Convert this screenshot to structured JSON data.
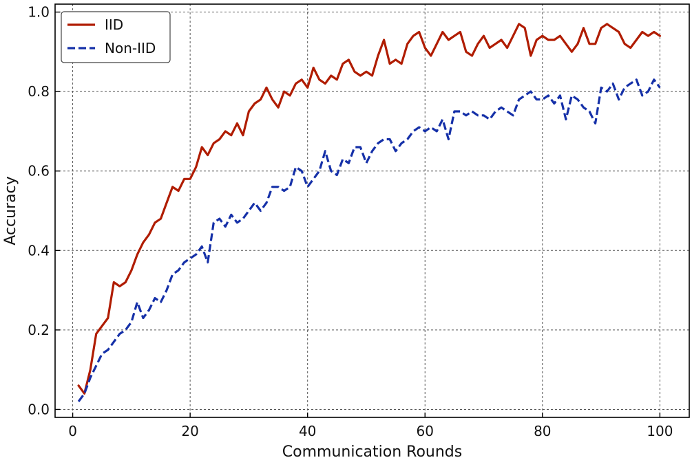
{
  "chart_data": {
    "type": "line",
    "xlabel": "Communication Rounds",
    "ylabel": "Accuracy",
    "xlim": [
      -3,
      105
    ],
    "ylim": [
      -0.02,
      1.02
    ],
    "xticks": [
      0,
      20,
      40,
      60,
      80,
      100
    ],
    "yticks": [
      0.0,
      0.2,
      0.4,
      0.6,
      0.8,
      1.0
    ],
    "xtick_labels": [
      "0",
      "20",
      "40",
      "60",
      "80",
      "100"
    ],
    "ytick_labels": [
      "0.0",
      "0.2",
      "0.4",
      "0.6",
      "0.8",
      "1.0"
    ],
    "grid": true,
    "legend_position": "top-left",
    "x": [
      1,
      2,
      3,
      4,
      5,
      6,
      7,
      8,
      9,
      10,
      11,
      12,
      13,
      14,
      15,
      16,
      17,
      18,
      19,
      20,
      21,
      22,
      23,
      24,
      25,
      26,
      27,
      28,
      29,
      30,
      31,
      32,
      33,
      34,
      35,
      36,
      37,
      38,
      39,
      40,
      41,
      42,
      43,
      44,
      45,
      46,
      47,
      48,
      49,
      50,
      51,
      52,
      53,
      54,
      55,
      56,
      57,
      58,
      59,
      60,
      61,
      62,
      63,
      64,
      65,
      66,
      67,
      68,
      69,
      70,
      71,
      72,
      73,
      74,
      75,
      76,
      77,
      78,
      79,
      80,
      81,
      82,
      83,
      84,
      85,
      86,
      87,
      88,
      89,
      90,
      91,
      92,
      93,
      94,
      95,
      96,
      97,
      98,
      99,
      100
    ],
    "series": [
      {
        "name": "IID",
        "color": "#b01c00",
        "style": "solid",
        "values": [
          0.06,
          0.04,
          0.1,
          0.19,
          0.21,
          0.23,
          0.32,
          0.31,
          0.32,
          0.35,
          0.39,
          0.42,
          0.44,
          0.47,
          0.48,
          0.52,
          0.56,
          0.55,
          0.58,
          0.58,
          0.61,
          0.66,
          0.64,
          0.67,
          0.68,
          0.7,
          0.69,
          0.72,
          0.69,
          0.75,
          0.77,
          0.78,
          0.81,
          0.78,
          0.76,
          0.8,
          0.79,
          0.82,
          0.83,
          0.81,
          0.86,
          0.83,
          0.82,
          0.84,
          0.83,
          0.87,
          0.88,
          0.85,
          0.84,
          0.85,
          0.84,
          0.89,
          0.93,
          0.87,
          0.88,
          0.87,
          0.92,
          0.94,
          0.95,
          0.91,
          0.89,
          0.92,
          0.95,
          0.93,
          0.94,
          0.95,
          0.9,
          0.89,
          0.92,
          0.94,
          0.91,
          0.92,
          0.93,
          0.91,
          0.94,
          0.97,
          0.96,
          0.89,
          0.93,
          0.94,
          0.93,
          0.93,
          0.94,
          0.92,
          0.9,
          0.92,
          0.96,
          0.92,
          0.92,
          0.96,
          0.97,
          0.96,
          0.95,
          0.92,
          0.91,
          0.93,
          0.95,
          0.94,
          0.95,
          0.94
        ]
      },
      {
        "name": "Non-IID",
        "color": "#1530a8",
        "style": "dashed",
        "values": [
          0.02,
          0.04,
          0.08,
          0.11,
          0.14,
          0.15,
          0.17,
          0.19,
          0.2,
          0.22,
          0.27,
          0.23,
          0.25,
          0.28,
          0.27,
          0.3,
          0.34,
          0.35,
          0.37,
          0.38,
          0.39,
          0.41,
          0.37,
          0.47,
          0.48,
          0.46,
          0.49,
          0.47,
          0.48,
          0.5,
          0.52,
          0.5,
          0.52,
          0.56,
          0.56,
          0.55,
          0.56,
          0.61,
          0.6,
          0.56,
          0.58,
          0.6,
          0.65,
          0.6,
          0.59,
          0.63,
          0.62,
          0.66,
          0.66,
          0.62,
          0.65,
          0.67,
          0.68,
          0.68,
          0.65,
          0.67,
          0.68,
          0.7,
          0.71,
          0.7,
          0.71,
          0.7,
          0.73,
          0.68,
          0.75,
          0.75,
          0.74,
          0.75,
          0.74,
          0.74,
          0.73,
          0.75,
          0.76,
          0.75,
          0.74,
          0.78,
          0.79,
          0.8,
          0.78,
          0.78,
          0.79,
          0.77,
          0.79,
          0.73,
          0.79,
          0.78,
          0.76,
          0.75,
          0.72,
          0.81,
          0.8,
          0.82,
          0.78,
          0.81,
          0.82,
          0.83,
          0.79,
          0.8,
          0.83,
          0.81
        ]
      }
    ]
  }
}
